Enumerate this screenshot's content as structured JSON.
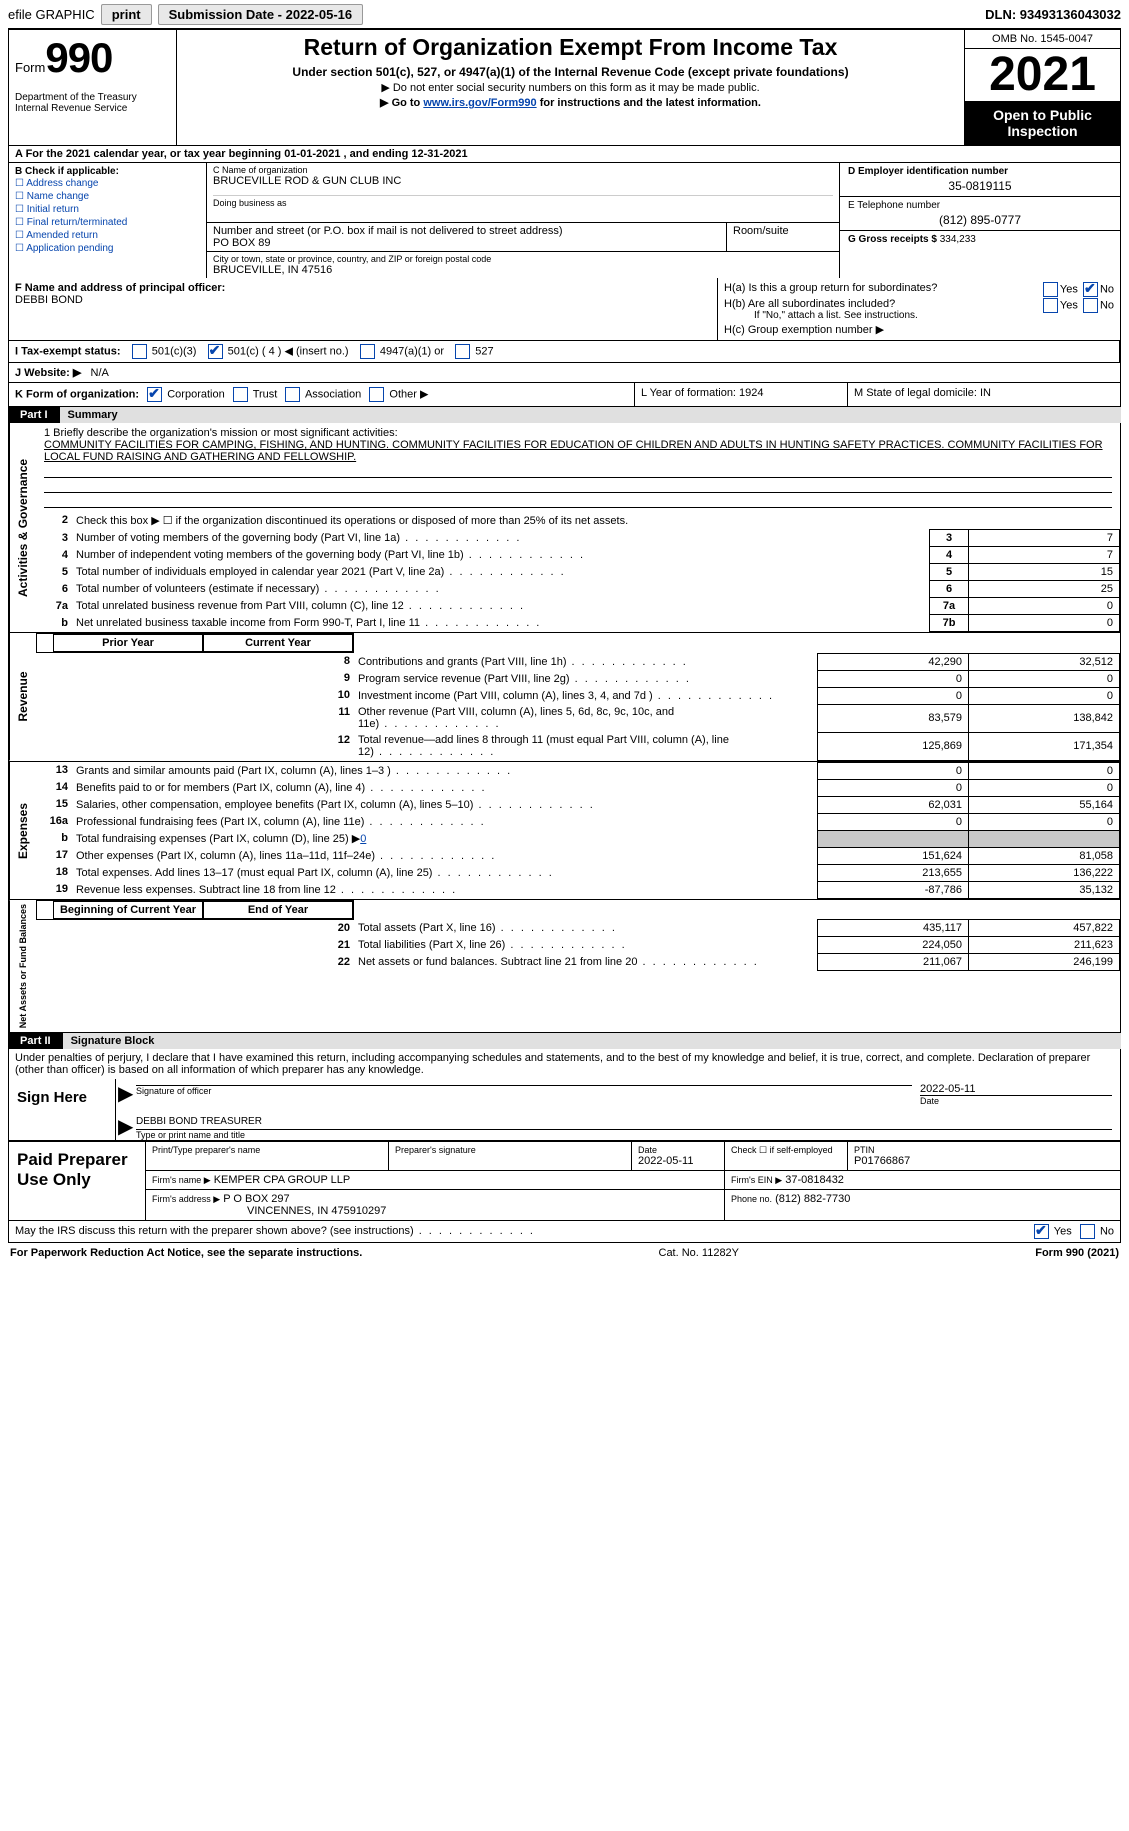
{
  "colors": {
    "link": "#0645AD",
    "black": "#000000",
    "white": "#ffffff",
    "gray_fill": "#c8c8c8",
    "btn_bg": "#e8e8e8"
  },
  "topbar": {
    "efile": "efile GRAPHIC",
    "print": "print",
    "submission": "Submission Date - 2022-05-16",
    "dln": "DLN: 93493136043032"
  },
  "header": {
    "form_word": "Form",
    "form_num": "990",
    "dept": "Department of the Treasury",
    "irs": "Internal Revenue Service",
    "title": "Return of Organization Exempt From Income Tax",
    "sub1": "Under section 501(c), 527, or 4947(a)(1) of the Internal Revenue Code (except private foundations)",
    "sub2": "▶ Do not enter social security numbers on this form as it may be made public.",
    "sub3_pre": "▶ Go to ",
    "sub3_link": "www.irs.gov/Form990",
    "sub3_post": " for instructions and the latest information.",
    "omb": "OMB No. 1545-0047",
    "year": "2021",
    "otp1": "Open to Public",
    "otp2": "Inspection"
  },
  "row_a": "A For the 2021 calendar year, or tax year beginning 01-01-2021    , and ending 12-31-2021",
  "col_b": {
    "label": "B Check if applicable:",
    "items": [
      "Address change",
      "Name change",
      "Initial return",
      "Final return/terminated",
      "Amended return",
      "Application pending"
    ]
  },
  "col_c": {
    "c_label": "C Name of organization",
    "org": "BRUCEVILLE ROD & GUN CLUB INC",
    "dba_label": "Doing business as",
    "street_label": "Number and street (or P.O. box if mail is not delivered to street address)",
    "room_label": "Room/suite",
    "street": "PO BOX 89",
    "city_label": "City or town, state or province, country, and ZIP or foreign postal code",
    "city": "BRUCEVILLE, IN  47516"
  },
  "col_d": {
    "d_label": "D Employer identification number",
    "ein": "35-0819115",
    "e_label": "E Telephone number",
    "phone": "(812) 895-0777",
    "g_label": "G Gross receipts $",
    "gross": "334,233"
  },
  "row_f": {
    "f_label": "F Name and address of principal officer:",
    "officer": "DEBBI BOND"
  },
  "row_h": {
    "ha": "H(a)  Is this a group return for subordinates?",
    "hb": "H(b)  Are all subordinates included?",
    "hb_note": "If \"No,\" attach a list. See instructions.",
    "hc": "H(c)  Group exemption number ▶",
    "yes": "Yes",
    "no": "No"
  },
  "row_i": {
    "label": "I   Tax-exempt status:",
    "o1": "501(c)(3)",
    "o2": "501(c) ( 4 ) ◀ (insert no.)",
    "o3": "4947(a)(1) or",
    "o4": "527"
  },
  "row_j": {
    "label": "J   Website: ▶",
    "val": "N/A"
  },
  "row_k": {
    "label": "K Form of organization:",
    "o1": "Corporation",
    "o2": "Trust",
    "o3": "Association",
    "o4": "Other ▶",
    "l": "L Year of formation: 1924",
    "m": "M State of legal domicile: IN"
  },
  "part1": {
    "num": "Part I",
    "title": "Summary"
  },
  "mission": {
    "q": "1   Briefly describe the organization's mission or most significant activities:",
    "text": "COMMUNITY FACILITIES FOR CAMPING, FISHING, AND HUNTING. COMMUNITY FACILITIES FOR EDUCATION OF CHILDREN AND ADULTS IN HUNTING SAFETY PRACTICES. COMMUNITY FACILITIES FOR LOCAL FUND RAISING AND GATHERING AND FELLOWSHIP."
  },
  "line2": "Check this box ▶ ☐  if the organization discontinued its operations or disposed of more than 25% of its net assets.",
  "gov_lines": [
    {
      "n": "3",
      "d": "Number of voting members of the governing body (Part VI, line 1a)",
      "box": "3",
      "v": "7"
    },
    {
      "n": "4",
      "d": "Number of independent voting members of the governing body (Part VI, line 1b)",
      "box": "4",
      "v": "7"
    },
    {
      "n": "5",
      "d": "Total number of individuals employed in calendar year 2021 (Part V, line 2a)",
      "box": "5",
      "v": "15"
    },
    {
      "n": "6",
      "d": "Total number of volunteers (estimate if necessary)",
      "box": "6",
      "v": "25"
    },
    {
      "n": "7a",
      "d": "Total unrelated business revenue from Part VIII, column (C), line 12",
      "box": "7a",
      "v": "0"
    },
    {
      "n": "b",
      "d": "Net unrelated business taxable income from Form 990-T, Part I, line 11",
      "box": "7b",
      "v": "0"
    }
  ],
  "py_cy": {
    "py": "Prior Year",
    "cy": "Current Year"
  },
  "rev_lines": [
    {
      "n": "8",
      "d": "Contributions and grants (Part VIII, line 1h)",
      "py": "42,290",
      "cy": "32,512"
    },
    {
      "n": "9",
      "d": "Program service revenue (Part VIII, line 2g)",
      "py": "0",
      "cy": "0"
    },
    {
      "n": "10",
      "d": "Investment income (Part VIII, column (A), lines 3, 4, and 7d )",
      "py": "0",
      "cy": "0"
    },
    {
      "n": "11",
      "d": "Other revenue (Part VIII, column (A), lines 5, 6d, 8c, 9c, 10c, and 11e)",
      "py": "83,579",
      "cy": "138,842"
    },
    {
      "n": "12",
      "d": "Total revenue—add lines 8 through 11 (must equal Part VIII, column (A), line 12)",
      "py": "125,869",
      "cy": "171,354"
    }
  ],
  "exp_lines": [
    {
      "n": "13",
      "d": "Grants and similar amounts paid (Part IX, column (A), lines 1–3 )",
      "py": "0",
      "cy": "0"
    },
    {
      "n": "14",
      "d": "Benefits paid to or for members (Part IX, column (A), line 4)",
      "py": "0",
      "cy": "0"
    },
    {
      "n": "15",
      "d": "Salaries, other compensation, employee benefits (Part IX, column (A), lines 5–10)",
      "py": "62,031",
      "cy": "55,164"
    },
    {
      "n": "16a",
      "d": "Professional fundraising fees (Part IX, column (A), line 11e)",
      "py": "0",
      "cy": "0"
    }
  ],
  "line16b": {
    "n": "b",
    "d": "Total fundraising expenses (Part IX, column (D), line 25) ▶",
    "v": "0"
  },
  "exp_lines2": [
    {
      "n": "17",
      "d": "Other expenses (Part IX, column (A), lines 11a–11d, 11f–24e)",
      "py": "151,624",
      "cy": "81,058"
    },
    {
      "n": "18",
      "d": "Total expenses. Add lines 13–17 (must equal Part IX, column (A), line 25)",
      "py": "213,655",
      "cy": "136,222"
    },
    {
      "n": "19",
      "d": "Revenue less expenses. Subtract line 18 from line 12",
      "py": "-87,786",
      "cy": "35,132"
    }
  ],
  "na_hdr": {
    "b": "Beginning of Current Year",
    "e": "End of Year"
  },
  "na_lines": [
    {
      "n": "20",
      "d": "Total assets (Part X, line 16)",
      "py": "435,117",
      "cy": "457,822"
    },
    {
      "n": "21",
      "d": "Total liabilities (Part X, line 26)",
      "py": "224,050",
      "cy": "211,623"
    },
    {
      "n": "22",
      "d": "Net assets or fund balances. Subtract line 21 from line 20",
      "py": "211,067",
      "cy": "246,199"
    }
  ],
  "part2": {
    "num": "Part II",
    "title": "Signature Block"
  },
  "penalties": "Under penalties of perjury, I declare that I have examined this return, including accompanying schedules and statements, and to the best of my knowledge and belief, it is true, correct, and complete. Declaration of preparer (other than officer) is based on all information of which preparer has any knowledge.",
  "sign": {
    "here": "Sign Here",
    "sigoff": "Signature of officer",
    "date": "2022-05-11",
    "datelbl": "Date",
    "name": "DEBBI BOND TREASURER",
    "namelbl": "Type or print name and title"
  },
  "prep": {
    "left": "Paid Preparer Use Only",
    "h1": "Print/Type preparer's name",
    "h2": "Preparer's signature",
    "h3": "Date",
    "h3v": "2022-05-11",
    "h4": "Check ☐ if self-employed",
    "h5": "PTIN",
    "h5v": "P01766867",
    "firm_lbl": "Firm's name    ▶",
    "firm": "KEMPER CPA GROUP LLP",
    "ein_lbl": "Firm's EIN ▶",
    "ein": "37-0818432",
    "addr_lbl": "Firm's address ▶",
    "addr1": "P O BOX 297",
    "addr2": "VINCENNES, IN  475910297",
    "ph_lbl": "Phone no.",
    "ph": "(812) 882-7730"
  },
  "irs_disc": "May the IRS discuss this return with the preparer shown above? (see instructions)",
  "footer": {
    "l": "For Paperwork Reduction Act Notice, see the separate instructions.",
    "m": "Cat. No. 11282Y",
    "r": "Form 990 (2021)"
  },
  "vlabels": {
    "ag": "Activities & Governance",
    "rev": "Revenue",
    "exp": "Expenses",
    "na": "Net Assets or Fund Balances"
  }
}
